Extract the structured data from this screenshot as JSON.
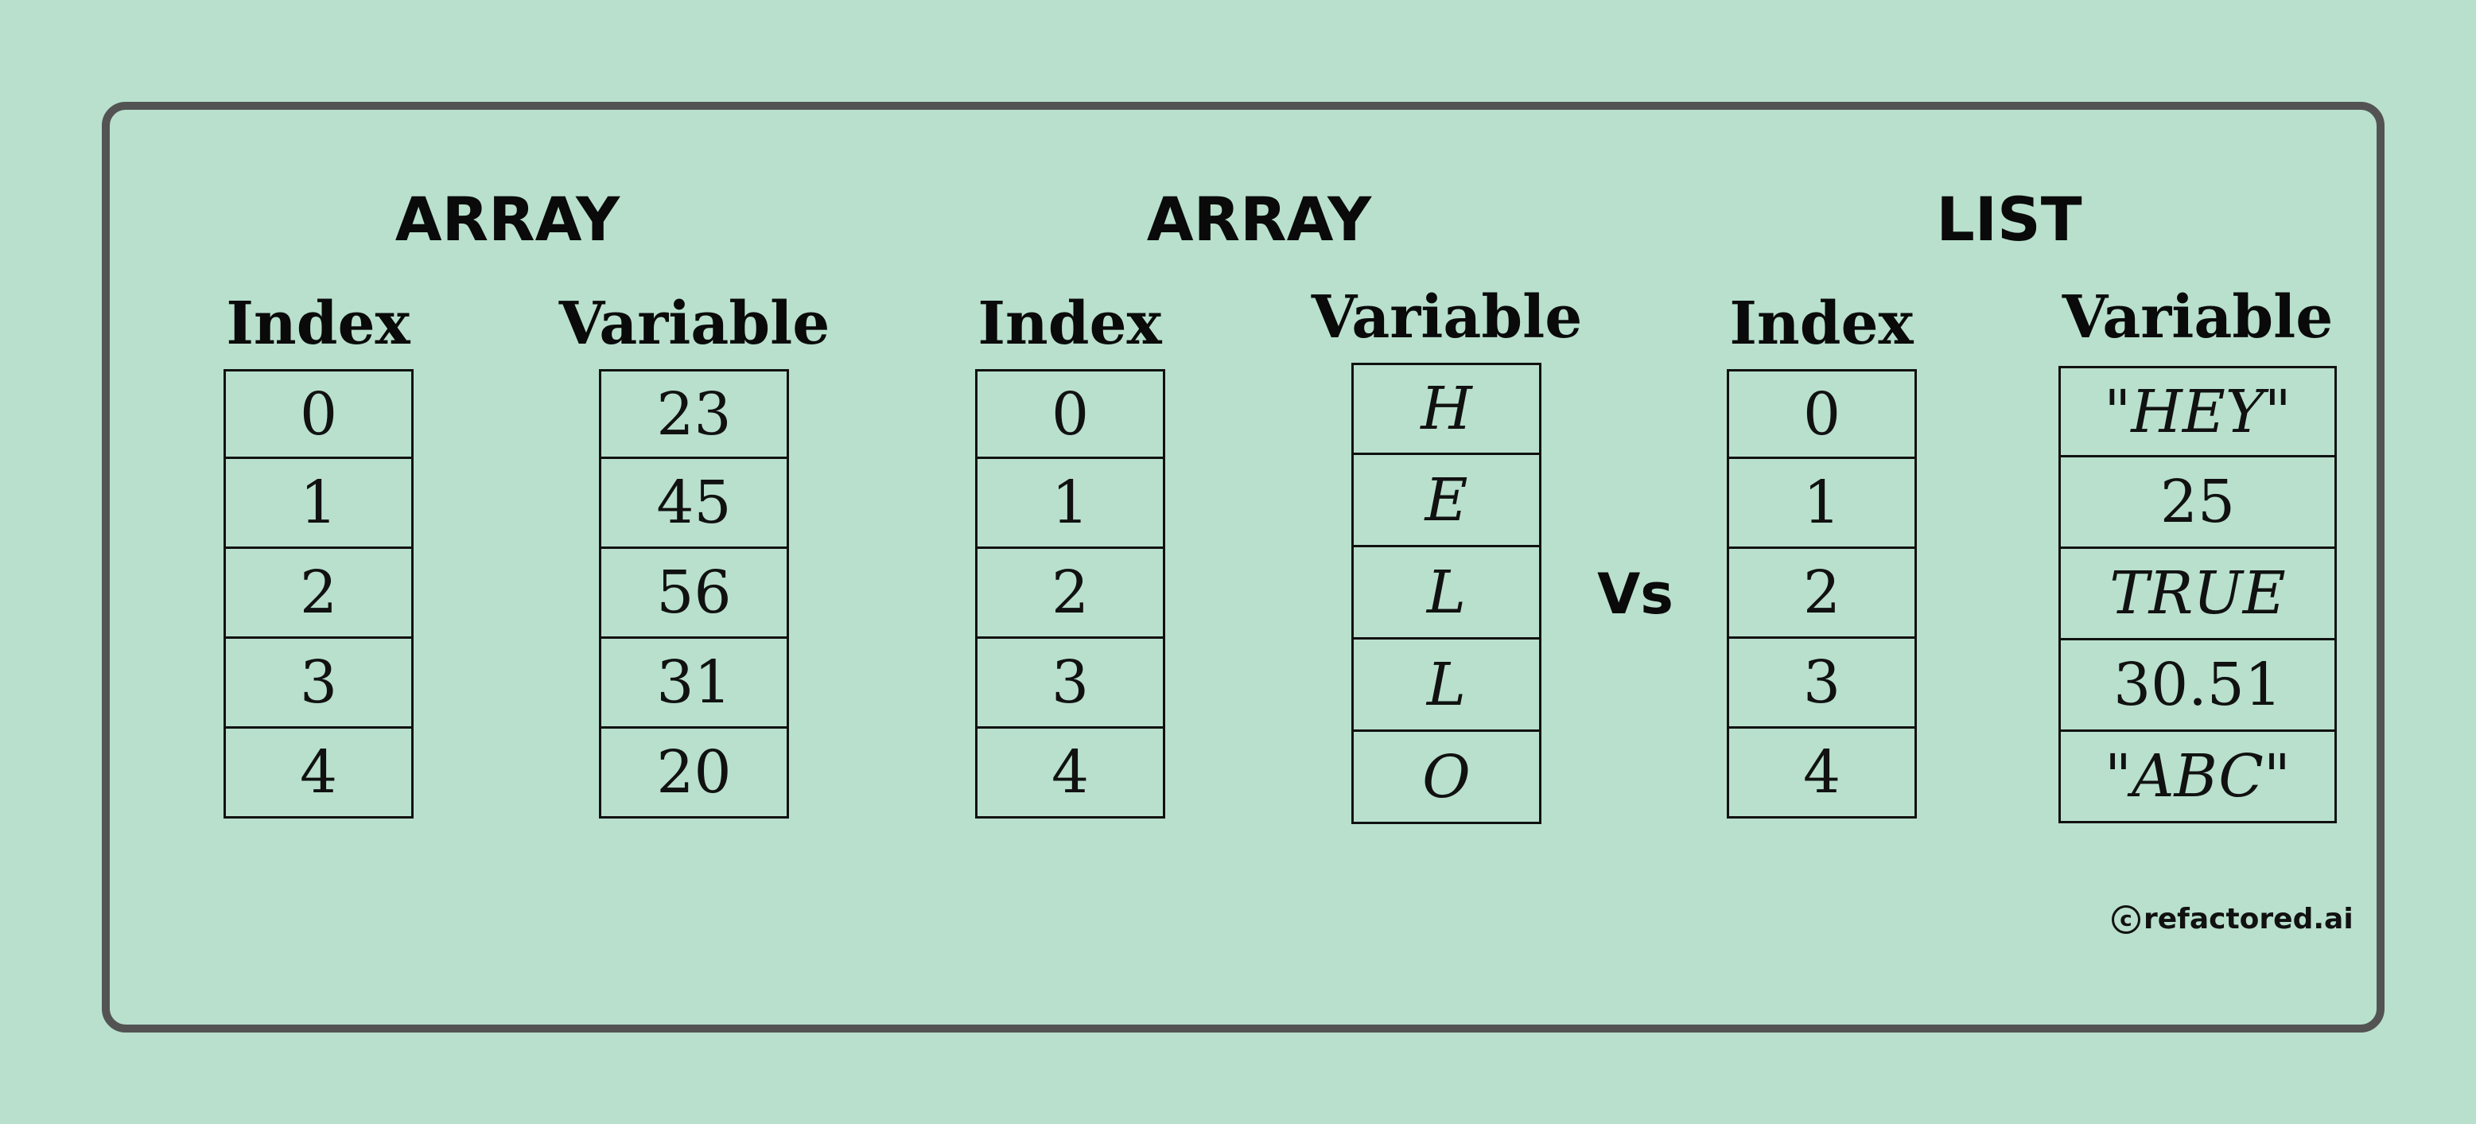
{
  "panels": [
    {
      "title": "ARRAY",
      "index_header": "Index",
      "variable_header": "Variable",
      "indices": [
        "0",
        "1",
        "2",
        "3",
        "4"
      ],
      "values": [
        "23",
        "45",
        "56",
        "31",
        "20"
      ]
    },
    {
      "title": "ARRAY",
      "index_header": "Index",
      "variable_header": "Variable",
      "indices": [
        "0",
        "1",
        "2",
        "3",
        "4"
      ],
      "values": [
        "H",
        "E",
        "L",
        "L",
        "O"
      ]
    },
    {
      "title": "LIST",
      "index_header": "Index",
      "variable_header": "Variable",
      "indices": [
        "0",
        "1",
        "2",
        "3",
        "4"
      ],
      "values": [
        "\"HEY\"",
        "25",
        "TRUE",
        "30.51",
        "\"ABC\""
      ]
    }
  ],
  "vs_label": "Vs",
  "credit": {
    "symbol": "c",
    "text": "refactored.ai"
  },
  "colors": {
    "background": "#b8e0cd",
    "frame_border": "#535353",
    "text": "#0a0a0a"
  }
}
